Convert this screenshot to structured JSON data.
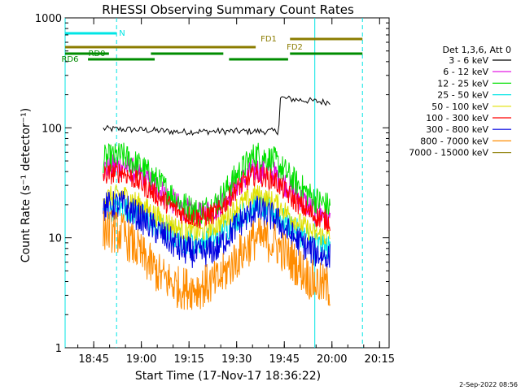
{
  "title": "RHESSI Observing Summary Count Rates",
  "xlabel": "Start Time (17-Nov-17 18:36:22)",
  "ylabel": "Count Rate (s⁻¹ detector⁻¹)",
  "date_stamp": "2-Sep-2022 08:56",
  "legend_header": "Det 1,3,6, Att 0",
  "flags": {
    "N": {
      "label": "N",
      "color": "#00e5e5",
      "segments": [
        [
          18.6,
          18.87
        ]
      ]
    },
    "FD1": {
      "label": "FD1",
      "color": "#8b7c00",
      "segments": [
        [
          19.78,
          20.16
        ]
      ]
    },
    "FD2": {
      "label": "FD2",
      "color": "#8b7c00",
      "segments": [
        [
          18.6,
          19.6
        ]
      ]
    },
    "RD0": {
      "label": "RD0",
      "color": "#008c00",
      "segments": [
        [
          18.6,
          18.83
        ],
        [
          19.05,
          19.43
        ],
        [
          19.78,
          20.16
        ]
      ]
    },
    "RD6": {
      "label": "RD6",
      "color": "#008c00",
      "segments": [
        [
          18.72,
          19.07
        ],
        [
          19.46,
          19.77
        ]
      ]
    }
  },
  "chart_data": {
    "type": "line",
    "x_unit": "hours UT",
    "xlim": [
      18.6,
      20.3
    ],
    "ylim": [
      1,
      1000
    ],
    "yscale": "log",
    "x_ticks": [
      {
        "value": 18.75,
        "label": "18:45"
      },
      {
        "value": 19.0,
        "label": "19:00"
      },
      {
        "value": 19.25,
        "label": "19:15"
      },
      {
        "value": 19.5,
        "label": "19:30"
      },
      {
        "value": 19.75,
        "label": "19:45"
      },
      {
        "value": 20.0,
        "label": "20:00"
      },
      {
        "value": 20.25,
        "label": "20:15"
      }
    ],
    "y_ticks": [
      {
        "value": 1,
        "label": "1"
      },
      {
        "value": 10,
        "label": "10"
      },
      {
        "value": 100,
        "label": "100"
      },
      {
        "value": 1000,
        "label": "1000"
      }
    ],
    "vlines": [
      {
        "x": 18.6,
        "style": "solid",
        "color": "#00e5e5"
      },
      {
        "x": 18.87,
        "style": "dashed",
        "color": "#00e5e5"
      },
      {
        "x": 19.91,
        "style": "solid",
        "color": "#00e5e5"
      },
      {
        "x": 20.16,
        "style": "dashed",
        "color": "#00e5e5"
      }
    ],
    "series": [
      {
        "name": "3 - 6 keV",
        "color": "#000000",
        "noise": 0.03,
        "x": [
          18.8,
          19.0,
          19.2,
          19.4,
          19.72,
          19.73,
          19.75,
          19.95,
          19.99
        ],
        "y": [
          98,
          96,
          92,
          93,
          93,
          190,
          185,
          172,
          172
        ]
      },
      {
        "name": "6 - 12 keV",
        "color": "#e000e0",
        "noise": 0.12,
        "x": [
          18.8,
          18.9,
          19.0,
          19.1,
          19.2,
          19.3,
          19.4,
          19.5,
          19.6,
          19.7,
          19.8,
          19.9,
          19.99
        ],
        "y": [
          42,
          46,
          37,
          27,
          19,
          16,
          19,
          30,
          42,
          38,
          26,
          18,
          15
        ]
      },
      {
        "name": "12 - 25 keV",
        "color": "#00e000",
        "noise": 0.13,
        "x": [
          18.8,
          18.9,
          19.0,
          19.1,
          19.2,
          19.3,
          19.4,
          19.5,
          19.6,
          19.7,
          19.8,
          19.9,
          19.99
        ],
        "y": [
          52,
          56,
          44,
          31,
          21,
          17,
          21,
          37,
          58,
          50,
          33,
          23,
          19
        ]
      },
      {
        "name": "25 - 50 keV",
        "color": "#00e5e5",
        "noise": 0.12,
        "x": [
          18.8,
          18.9,
          19.0,
          19.1,
          19.2,
          19.3,
          19.4,
          19.5,
          19.6,
          19.7,
          19.8,
          19.9,
          19.99
        ],
        "y": [
          18,
          19,
          16,
          12,
          9.5,
          9,
          10,
          15,
          20,
          17,
          12,
          9,
          8
        ]
      },
      {
        "name": "50 - 100 keV",
        "color": "#e0e000",
        "noise": 0.1,
        "x": [
          18.8,
          18.9,
          19.0,
          19.1,
          19.2,
          19.3,
          19.4,
          19.5,
          19.6,
          19.7,
          19.8,
          19.9,
          19.99
        ],
        "y": [
          23,
          25,
          20,
          15,
          12,
          11,
          13,
          19,
          25,
          21,
          15,
          11,
          10
        ]
      },
      {
        "name": "100 - 300 keV",
        "color": "#ff0000",
        "noise": 0.1,
        "x": [
          18.8,
          18.9,
          19.0,
          19.1,
          19.2,
          19.3,
          19.4,
          19.5,
          19.6,
          19.7,
          19.8,
          19.9,
          19.99
        ],
        "y": [
          37,
          40,
          31,
          23,
          17,
          15,
          17,
          28,
          38,
          33,
          22,
          16,
          14
        ]
      },
      {
        "name": "300 - 800 keV",
        "color": "#0000e0",
        "noise": 0.14,
        "x": [
          18.8,
          18.9,
          19.0,
          19.1,
          19.2,
          19.3,
          19.4,
          19.5,
          19.6,
          19.7,
          19.8,
          19.9,
          19.99
        ],
        "y": [
          19,
          20,
          15,
          11,
          8,
          7,
          8,
          13,
          18,
          15,
          10,
          7.5,
          6.5
        ]
      },
      {
        "name": "800 - 7000 keV",
        "color": "#ff8c00",
        "noise": 0.2,
        "x": [
          18.8,
          18.9,
          19.0,
          19.1,
          19.2,
          19.3,
          19.4,
          19.5,
          19.6,
          19.7,
          19.8,
          19.9,
          19.99
        ],
        "y": [
          12,
          11,
          7,
          4.5,
          3.5,
          3.5,
          4,
          6.5,
          10,
          9,
          6,
          4,
          3.5
        ]
      },
      {
        "name": "7000 - 15000 keV",
        "color": "#8b7c00",
        "noise": 0,
        "x": [],
        "y": []
      }
    ]
  }
}
